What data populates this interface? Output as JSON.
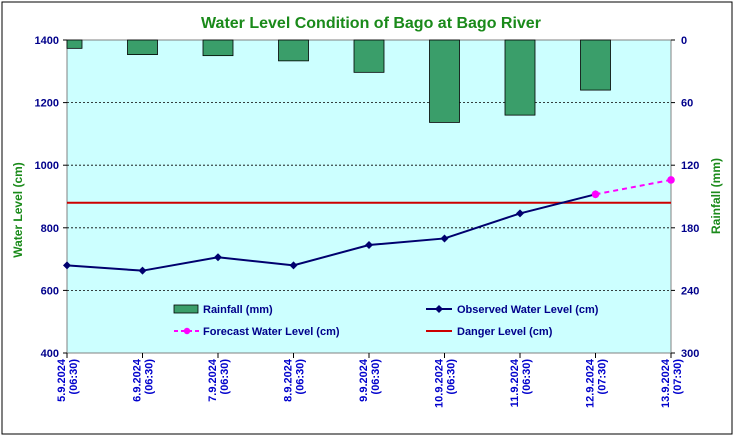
{
  "chart_data": {
    "type": "line",
    "title": "Water Level Condition of Bago at Bago River",
    "ylabel": "Water Level (cm)",
    "y2label": "Rainfall (mm)",
    "ylim": [
      400,
      1400
    ],
    "y2lim": [
      0,
      300
    ],
    "y2_inverted": true,
    "y_ticks": [
      "1400",
      "1200",
      "1000",
      "800",
      "600",
      "400"
    ],
    "y2_ticks": [
      "0",
      "60",
      "120",
      "180",
      "240",
      "300"
    ],
    "categories": [
      [
        "5.9.2024",
        "(06:30)"
      ],
      [
        "6.9.2024",
        "(06:30)"
      ],
      [
        "7.9.2024",
        "(06:30)"
      ],
      [
        "8.9.2024",
        "(06:30)"
      ],
      [
        "9.9.2024",
        "(06:30)"
      ],
      [
        "10.9.2024",
        "(06:30)"
      ],
      [
        "11.9.2024",
        "(06:30)"
      ],
      [
        "12.9.2024",
        "(07:30)"
      ],
      [
        "13.9.2024",
        "(07:30)"
      ]
    ],
    "series": [
      {
        "name": "Rainfall (mm)",
        "type": "bar",
        "axis": "right",
        "color": "#3a9e6a",
        "values": [
          8,
          14,
          15,
          20,
          31,
          79,
          72,
          48,
          null
        ]
      },
      {
        "name": "Observed Water Level (cm)",
        "type": "line",
        "axis": "left",
        "color": "#00006e",
        "values": [
          680,
          663,
          706,
          680,
          745,
          766,
          846,
          907,
          null
        ]
      },
      {
        "name": "Forecast Water Level (cm)",
        "type": "line",
        "axis": "left",
        "color": "#ff00ff",
        "dashed": true,
        "values": [
          null,
          null,
          null,
          null,
          null,
          null,
          null,
          907,
          953
        ]
      },
      {
        "name": "Danger Level (cm)",
        "type": "hline",
        "axis": "left",
        "color": "#cc0000",
        "value": 880
      }
    ],
    "legend": "inside-bottom",
    "grid": true,
    "plot_background": "#ccffff"
  }
}
